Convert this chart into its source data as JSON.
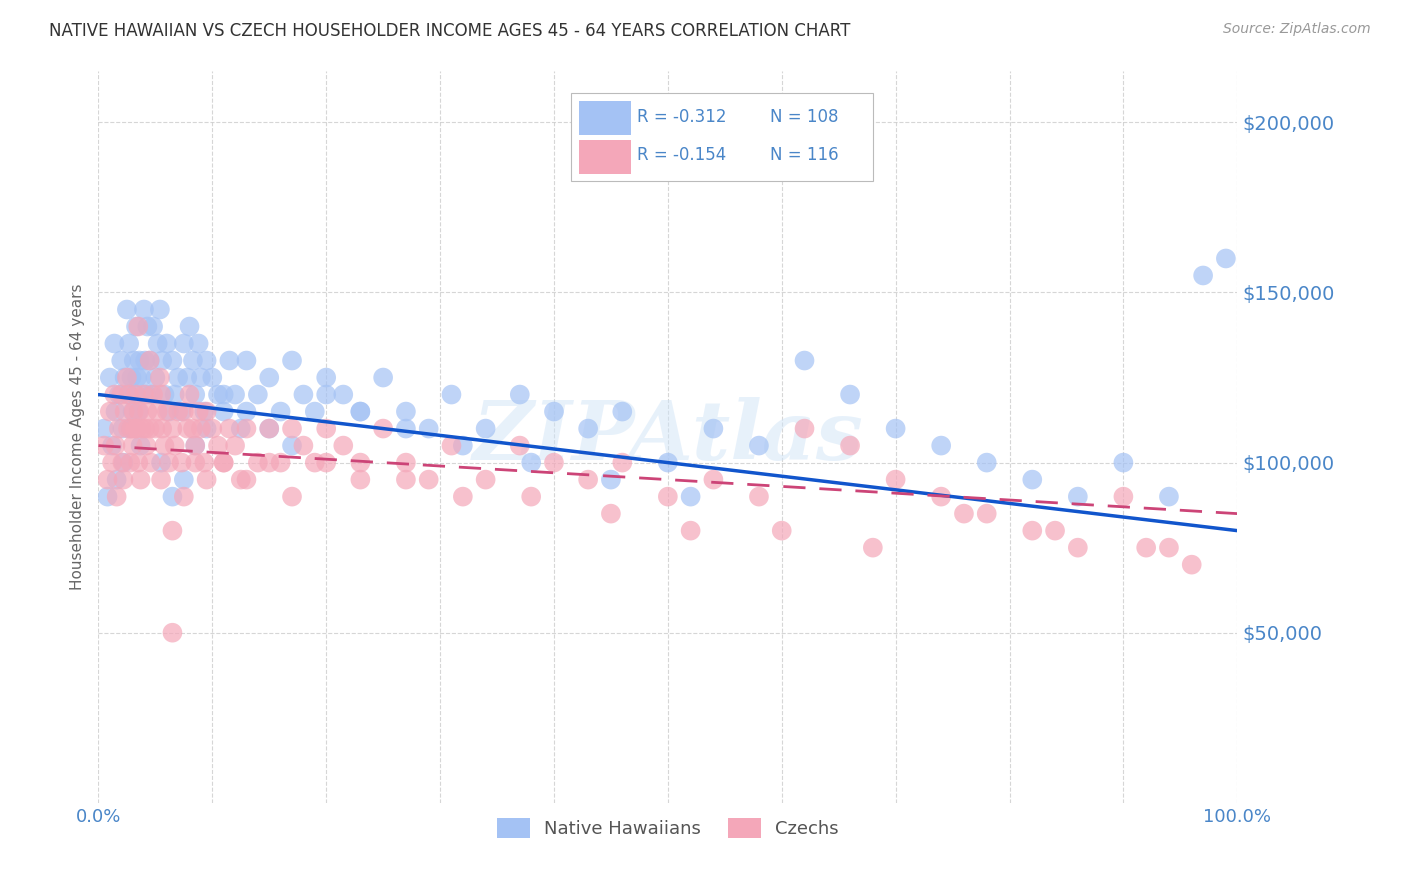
{
  "title": "NATIVE HAWAIIAN VS CZECH HOUSEHOLDER INCOME AGES 45 - 64 YEARS CORRELATION CHART",
  "source": "Source: ZipAtlas.com",
  "ylabel": "Householder Income Ages 45 - 64 years",
  "ytick_labels": [
    "$50,000",
    "$100,000",
    "$150,000",
    "$200,000"
  ],
  "ytick_values": [
    50000,
    100000,
    150000,
    200000
  ],
  "ylim": [
    0,
    215000
  ],
  "xlim": [
    0,
    1.0
  ],
  "legend_r1": "-0.312",
  "legend_n1": "108",
  "legend_r2": "-0.154",
  "legend_n2": "116",
  "blue_color": "#a4c2f4",
  "pink_color": "#f4a7b9",
  "text_blue": "#4a86c8",
  "trend_blue": "#1155cc",
  "trend_pink": "#cc4477",
  "watermark": "ZIPAtlas",
  "blue_x": [
    0.005,
    0.008,
    0.01,
    0.012,
    0.014,
    0.015,
    0.016,
    0.018,
    0.02,
    0.021,
    0.022,
    0.023,
    0.025,
    0.026,
    0.027,
    0.028,
    0.029,
    0.03,
    0.031,
    0.032,
    0.033,
    0.034,
    0.035,
    0.036,
    0.037,
    0.038,
    0.04,
    0.041,
    0.042,
    0.043,
    0.045,
    0.046,
    0.048,
    0.05,
    0.052,
    0.054,
    0.056,
    0.058,
    0.06,
    0.062,
    0.065,
    0.067,
    0.07,
    0.073,
    0.075,
    0.078,
    0.08,
    0.083,
    0.085,
    0.088,
    0.09,
    0.093,
    0.095,
    0.1,
    0.105,
    0.11,
    0.115,
    0.12,
    0.125,
    0.13,
    0.14,
    0.15,
    0.16,
    0.17,
    0.18,
    0.19,
    0.2,
    0.215,
    0.23,
    0.25,
    0.27,
    0.29,
    0.31,
    0.34,
    0.37,
    0.4,
    0.43,
    0.46,
    0.5,
    0.54,
    0.58,
    0.62,
    0.66,
    0.7,
    0.74,
    0.78,
    0.82,
    0.86,
    0.9,
    0.94,
    0.97,
    0.99,
    0.055,
    0.065,
    0.075,
    0.085,
    0.095,
    0.11,
    0.13,
    0.15,
    0.17,
    0.2,
    0.23,
    0.27,
    0.32,
    0.38,
    0.45,
    0.52
  ],
  "blue_y": [
    110000,
    90000,
    125000,
    105000,
    135000,
    115000,
    95000,
    120000,
    130000,
    110000,
    100000,
    125000,
    145000,
    120000,
    135000,
    110000,
    125000,
    115000,
    130000,
    120000,
    140000,
    125000,
    115000,
    130000,
    105000,
    125000,
    145000,
    130000,
    120000,
    140000,
    130000,
    120000,
    140000,
    125000,
    135000,
    145000,
    130000,
    120000,
    135000,
    115000,
    130000,
    120000,
    125000,
    115000,
    135000,
    125000,
    140000,
    130000,
    120000,
    135000,
    125000,
    115000,
    130000,
    125000,
    120000,
    115000,
    130000,
    120000,
    110000,
    130000,
    120000,
    125000,
    115000,
    130000,
    120000,
    115000,
    125000,
    120000,
    115000,
    125000,
    115000,
    110000,
    120000,
    110000,
    120000,
    115000,
    110000,
    115000,
    100000,
    110000,
    105000,
    130000,
    120000,
    110000,
    105000,
    100000,
    95000,
    90000,
    100000,
    90000,
    155000,
    160000,
    100000,
    90000,
    95000,
    105000,
    110000,
    120000,
    115000,
    110000,
    105000,
    120000,
    115000,
    110000,
    105000,
    100000,
    95000,
    90000
  ],
  "pink_x": [
    0.005,
    0.008,
    0.01,
    0.012,
    0.014,
    0.015,
    0.016,
    0.018,
    0.02,
    0.021,
    0.022,
    0.023,
    0.025,
    0.026,
    0.027,
    0.028,
    0.029,
    0.03,
    0.031,
    0.032,
    0.033,
    0.034,
    0.035,
    0.036,
    0.037,
    0.038,
    0.04,
    0.041,
    0.042,
    0.043,
    0.045,
    0.046,
    0.048,
    0.05,
    0.052,
    0.054,
    0.056,
    0.058,
    0.06,
    0.062,
    0.065,
    0.067,
    0.07,
    0.073,
    0.075,
    0.078,
    0.08,
    0.083,
    0.085,
    0.088,
    0.09,
    0.093,
    0.095,
    0.1,
    0.105,
    0.11,
    0.115,
    0.12,
    0.125,
    0.13,
    0.14,
    0.15,
    0.16,
    0.17,
    0.18,
    0.19,
    0.2,
    0.215,
    0.23,
    0.25,
    0.27,
    0.29,
    0.31,
    0.34,
    0.37,
    0.4,
    0.43,
    0.46,
    0.5,
    0.54,
    0.58,
    0.62,
    0.66,
    0.7,
    0.74,
    0.78,
    0.82,
    0.86,
    0.9,
    0.94,
    0.055,
    0.065,
    0.075,
    0.085,
    0.095,
    0.11,
    0.13,
    0.15,
    0.17,
    0.2,
    0.23,
    0.27,
    0.32,
    0.38,
    0.45,
    0.52,
    0.6,
    0.68,
    0.76,
    0.84,
    0.92,
    0.96,
    0.035,
    0.045,
    0.055,
    0.065
  ],
  "pink_y": [
    105000,
    95000,
    115000,
    100000,
    120000,
    105000,
    90000,
    110000,
    120000,
    100000,
    95000,
    115000,
    125000,
    110000,
    120000,
    100000,
    110000,
    105000,
    115000,
    110000,
    120000,
    110000,
    100000,
    115000,
    95000,
    110000,
    120000,
    110000,
    105000,
    115000,
    110000,
    100000,
    120000,
    110000,
    115000,
    125000,
    110000,
    105000,
    115000,
    100000,
    110000,
    105000,
    115000,
    100000,
    115000,
    110000,
    120000,
    110000,
    105000,
    115000,
    110000,
    100000,
    115000,
    110000,
    105000,
    100000,
    110000,
    105000,
    95000,
    110000,
    100000,
    110000,
    100000,
    110000,
    105000,
    100000,
    110000,
    105000,
    100000,
    110000,
    100000,
    95000,
    105000,
    95000,
    105000,
    100000,
    95000,
    100000,
    90000,
    95000,
    90000,
    110000,
    105000,
    95000,
    90000,
    85000,
    80000,
    75000,
    90000,
    75000,
    95000,
    80000,
    90000,
    100000,
    95000,
    100000,
    95000,
    100000,
    90000,
    100000,
    95000,
    95000,
    90000,
    90000,
    85000,
    80000,
    80000,
    75000,
    85000,
    80000,
    75000,
    70000,
    140000,
    130000,
    120000,
    50000
  ]
}
